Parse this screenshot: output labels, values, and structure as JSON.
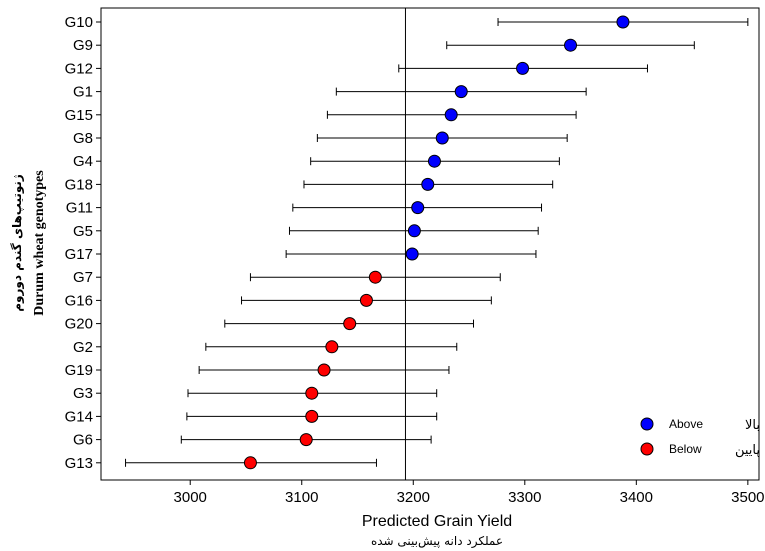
{
  "chart_data": {
    "type": "scatter",
    "xlabel": "Predicted Grain Yield",
    "xlabel_fa": "عملکرد دانه پیش‌بینی شده",
    "ylabel": "Durum wheat genotypes",
    "ylabel_fa": "ژنوتیپ‌های گندم دوروم",
    "xlim": [
      2920,
      3510
    ],
    "x_ticks": [
      3000,
      3100,
      3200,
      3300,
      3400,
      3500
    ],
    "reference_line": 3193,
    "categories": [
      "G10",
      "G9",
      "G12",
      "G1",
      "G15",
      "G8",
      "G4",
      "G18",
      "G11",
      "G5",
      "G17",
      "G7",
      "G16",
      "G20",
      "G2",
      "G19",
      "G3",
      "G14",
      "G6",
      "G13"
    ],
    "values": [
      3388,
      3341,
      3298,
      3243,
      3234,
      3226,
      3219,
      3213,
      3204,
      3201,
      3199,
      3166,
      3158,
      3143,
      3127,
      3120,
      3109,
      3109,
      3104,
      3054
    ],
    "lower": [
      3276,
      3230,
      3187,
      3131,
      3123,
      3114,
      3108,
      3102,
      3092,
      3089,
      3086,
      3054,
      3046,
      3031,
      3014,
      3008,
      2998,
      2997,
      2992,
      2942
    ],
    "upper": [
      3500,
      3452,
      3410,
      3355,
      3346,
      3338,
      3331,
      3325,
      3315,
      3312,
      3310,
      3278,
      3270,
      3254,
      3239,
      3232,
      3221,
      3221,
      3216,
      3167
    ],
    "groups": [
      "Above",
      "Above",
      "Above",
      "Above",
      "Above",
      "Above",
      "Above",
      "Above",
      "Above",
      "Above",
      "Above",
      "Below",
      "Below",
      "Below",
      "Below",
      "Below",
      "Below",
      "Below",
      "Below",
      "Below"
    ],
    "grid": false,
    "legend_position": "bottom-right",
    "legend": [
      {
        "label": "Above",
        "label_fa": "بالا",
        "color": "#0000ff"
      },
      {
        "label": "Below",
        "label_fa": "پایین",
        "color": "#ff0000"
      }
    ]
  }
}
